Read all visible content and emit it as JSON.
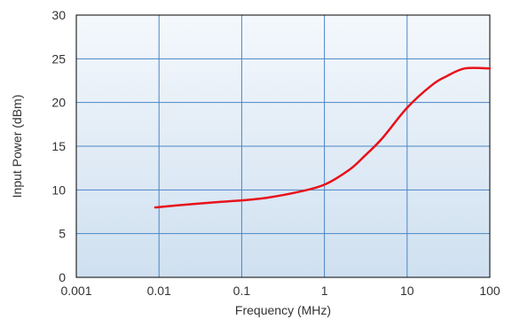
{
  "chart_data": {
    "type": "line",
    "title": "",
    "xlabel": "Frequency (MHz)",
    "ylabel": "Input Power (dBm)",
    "x_scale": "log",
    "xlim": [
      0.001,
      100
    ],
    "ylim": [
      0,
      30
    ],
    "x_ticks": [
      0.001,
      0.01,
      0.1,
      1,
      10,
      100
    ],
    "x_tick_labels": [
      "0.001",
      "0.01",
      "0.1",
      "1",
      "10",
      "100"
    ],
    "y_ticks": [
      0,
      5,
      10,
      15,
      20,
      25,
      30
    ],
    "y_tick_labels": [
      "0",
      "5",
      "10",
      "15",
      "20",
      "25",
      "30"
    ],
    "grid": true,
    "colors": {
      "series": "#e8111a",
      "grid": "#4a86c5",
      "plot_bg_top": "#f4f8fc",
      "plot_bg_bottom": "#cfe0f0"
    },
    "series": [
      {
        "x": [
          0.009,
          0.02,
          0.05,
          0.1,
          0.2,
          0.5,
          1,
          2,
          3,
          5,
          10,
          20,
          30,
          50,
          100
        ],
        "y": [
          8.0,
          8.3,
          8.6,
          8.8,
          9.1,
          9.8,
          10.6,
          12.3,
          13.8,
          15.9,
          19.4,
          22.0,
          23.0,
          23.9,
          23.9
        ]
      }
    ]
  }
}
